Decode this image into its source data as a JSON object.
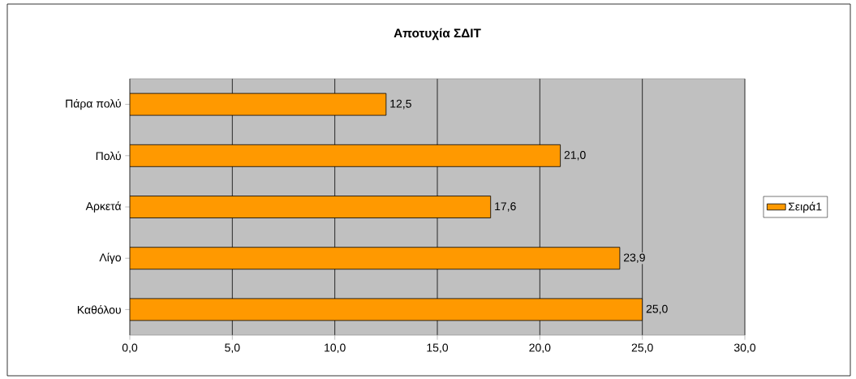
{
  "chart_data": {
    "type": "bar",
    "orientation": "horizontal",
    "title": "**Αποτυχία ΣΔΙΤ**",
    "categories": [
      "Πάρα πολύ",
      "Πολύ",
      "Αρκετά",
      "Λίγο",
      "Καθόλου"
    ],
    "series": [
      {
        "name": "Σειρά1",
        "color": "#ff9900",
        "values": [
          12.5,
          21.0,
          17.6,
          23.9,
          25.0
        ],
        "value_labels": [
          "12,5",
          "21,0",
          "17,6",
          "23,9",
          "25,0"
        ]
      }
    ],
    "xlim": [
      0,
      30
    ],
    "xticks": [
      {
        "value": 0,
        "label": "0,0"
      },
      {
        "value": 5,
        "label": "5,0"
      },
      {
        "value": 10,
        "label": "10,0"
      },
      {
        "value": 15,
        "label": "15,0"
      },
      {
        "value": 20,
        "label": "20,0"
      },
      {
        "value": 25,
        "label": "25,0"
      },
      {
        "value": 30,
        "label": "30,0"
      }
    ],
    "grid": "x",
    "legend": "right"
  }
}
